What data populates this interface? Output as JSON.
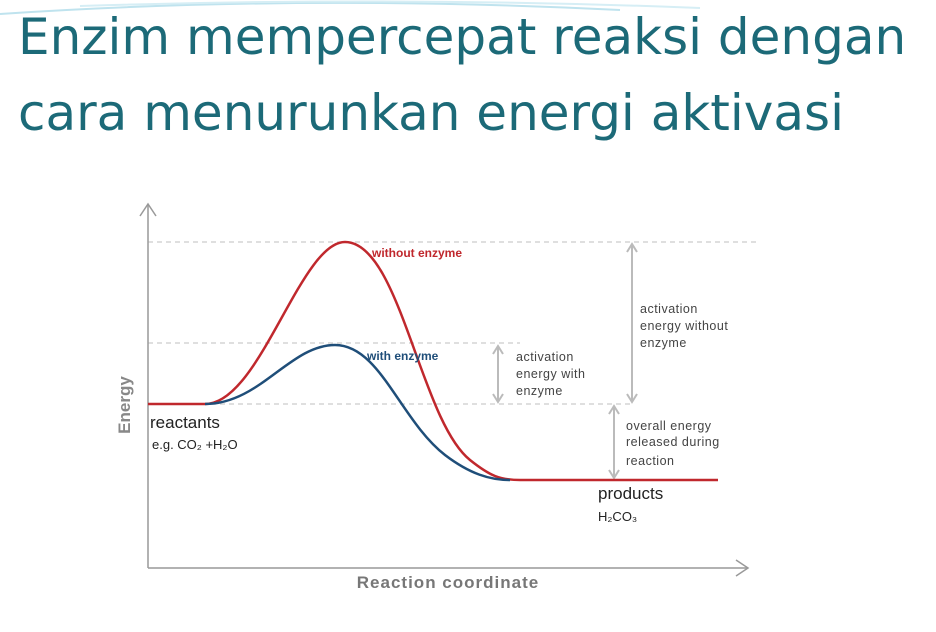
{
  "title": {
    "lines": [
      "Enzim mempercepat reaksi dengan",
      "cara menurunkan energi aktivasi"
    ]
  },
  "diagram": {
    "y_axis_label": "Energy",
    "x_axis_label": "Reaction coordinate",
    "curves": [
      {
        "label": "without enzyme"
      },
      {
        "label": "with enzyme"
      }
    ],
    "reactants": {
      "label": "reactants",
      "example": "e.g. CO₂ +H₂O"
    },
    "products": {
      "label": "products",
      "example": "H₂CO₃"
    },
    "annotations": [
      {
        "lines": [
          "activation",
          "energy with",
          "enzyme"
        ]
      },
      {
        "lines": [
          "activation",
          "energy without",
          "enzyme"
        ]
      },
      {
        "lines": [
          "overall energy",
          "released during",
          "reaction"
        ]
      }
    ]
  }
}
